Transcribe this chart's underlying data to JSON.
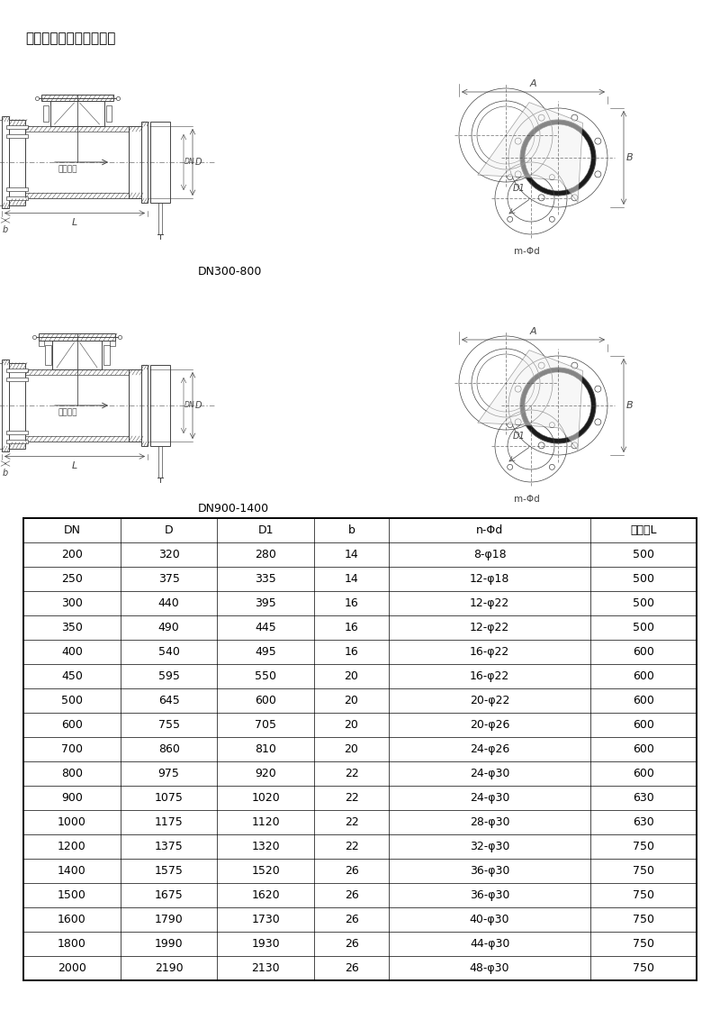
{
  "title": "二、主要外形连接尺寸：",
  "table_headers": [
    "DN",
    "D",
    "D1",
    "b",
    "n-Φd",
    "长系列L"
  ],
  "table_data": [
    [
      "200",
      "320",
      "280",
      "14",
      "8-φ18",
      "500"
    ],
    [
      "250",
      "375",
      "335",
      "14",
      "12-φ18",
      "500"
    ],
    [
      "300",
      "440",
      "395",
      "16",
      "12-φ22",
      "500"
    ],
    [
      "350",
      "490",
      "445",
      "16",
      "12-φ22",
      "500"
    ],
    [
      "400",
      "540",
      "495",
      "16",
      "16-φ22",
      "600"
    ],
    [
      "450",
      "595",
      "550",
      "20",
      "16-φ22",
      "600"
    ],
    [
      "500",
      "645",
      "600",
      "20",
      "20-φ22",
      "600"
    ],
    [
      "600",
      "755",
      "705",
      "20",
      "20-φ26",
      "600"
    ],
    [
      "700",
      "860",
      "810",
      "20",
      "24-φ26",
      "600"
    ],
    [
      "800",
      "975",
      "920",
      "22",
      "24-φ30",
      "600"
    ],
    [
      "900",
      "1075",
      "1020",
      "22",
      "24-φ30",
      "630"
    ],
    [
      "1000",
      "1175",
      "1120",
      "22",
      "28-φ30",
      "630"
    ],
    [
      "1200",
      "1375",
      "1320",
      "22",
      "32-φ30",
      "750"
    ],
    [
      "1400",
      "1575",
      "1520",
      "26",
      "36-φ30",
      "750"
    ],
    [
      "1500",
      "1675",
      "1620",
      "26",
      "36-φ30",
      "750"
    ],
    [
      "1600",
      "1790",
      "1730",
      "26",
      "40-φ30",
      "750"
    ],
    [
      "1800",
      "1990",
      "1930",
      "26",
      "44-φ30",
      "750"
    ],
    [
      "2000",
      "2190",
      "2130",
      "26",
      "48-φ30",
      "750"
    ]
  ],
  "label_dn300_800": "DN300-800",
  "label_dn900_1400": "DN900-1400",
  "bg_color": "#ffffff",
  "table_line_color": "#000000",
  "text_color": "#000000",
  "draw_color": "#555555",
  "fig_width": 8.0,
  "fig_height": 11.32
}
